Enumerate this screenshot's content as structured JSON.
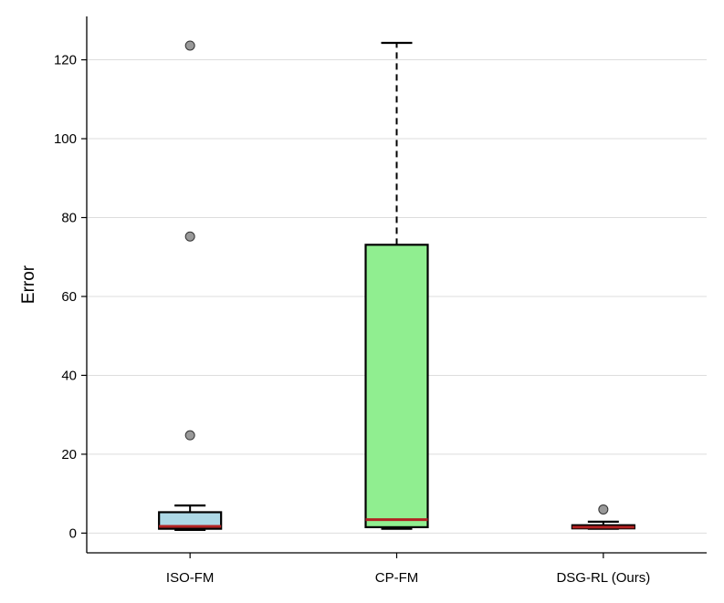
{
  "chart_data": {
    "type": "box",
    "ylabel": "Error",
    "xlabel": "",
    "ylim": [
      -5,
      131
    ],
    "yticks": [
      0,
      20,
      40,
      60,
      80,
      100,
      120
    ],
    "grid": "horizontal",
    "categories": [
      "ISO-FM",
      "CP-FM",
      "DSG-RL (Ours)"
    ],
    "boxes": [
      {
        "label": "ISO-FM",
        "whisker_low": 0.8,
        "q1": 1.1,
        "median": 1.7,
        "q3": 5.3,
        "whisker_high": 7.0,
        "outliers": [
          24.8,
          75.2,
          123.6
        ],
        "fill": "#add8e6"
      },
      {
        "label": "CP-FM",
        "whisker_low": 1.1,
        "q1": 1.5,
        "median": 3.4,
        "q3": 73.1,
        "whisker_high": 124.3,
        "outliers": [],
        "fill": "#90ee90"
      },
      {
        "label": "DSG-RL (Ours)",
        "whisker_low": 1.1,
        "q1": 1.2,
        "median": 1.5,
        "q3": 2.0,
        "whisker_high": 2.9,
        "outliers": [
          6.0
        ],
        "fill": "#add8e6"
      }
    ],
    "colors": {
      "median": "#b22222",
      "box_edge": "#000000",
      "outlier_fill": "#999999",
      "grid": "#dddddd"
    }
  }
}
